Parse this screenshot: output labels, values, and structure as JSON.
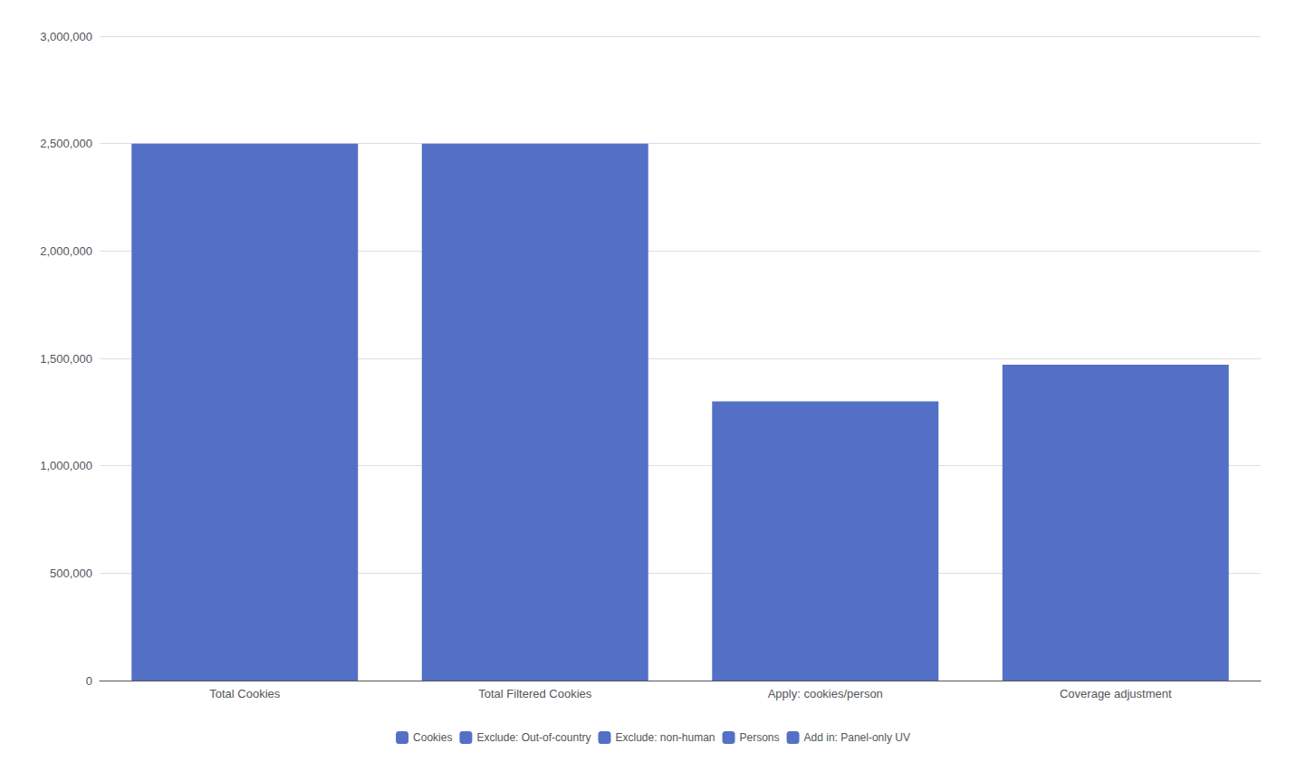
{
  "chart_data": {
    "type": "bar",
    "categories": [
      "Total Cookies",
      "Total Filtered Cookies",
      "Apply: cookies/person",
      "Coverage adjustment"
    ],
    "values": [
      2500000,
      2500000,
      1300000,
      1470000
    ],
    "color": "#5470c6",
    "ylim": [
      0,
      3000000
    ],
    "yticks": [
      0,
      {
        "value": 500000,
        "label": "500,000"
      },
      {
        "value": 1000000,
        "label": "1,000,000"
      },
      {
        "value": 1500000,
        "label": "1,500,000"
      },
      {
        "value": 2000000,
        "label": "2,000,000"
      },
      {
        "value": 2500000,
        "label": "2,500,000"
      },
      {
        "value": 3000000,
        "label": "3,000,000"
      }
    ],
    "grid": true,
    "legend": "bottom",
    "legend_labels": [
      "Cookies",
      "Exclude: Out-of-country",
      "Exclude: non-human",
      "Persons",
      "Add in: Panel-only UV"
    ]
  }
}
